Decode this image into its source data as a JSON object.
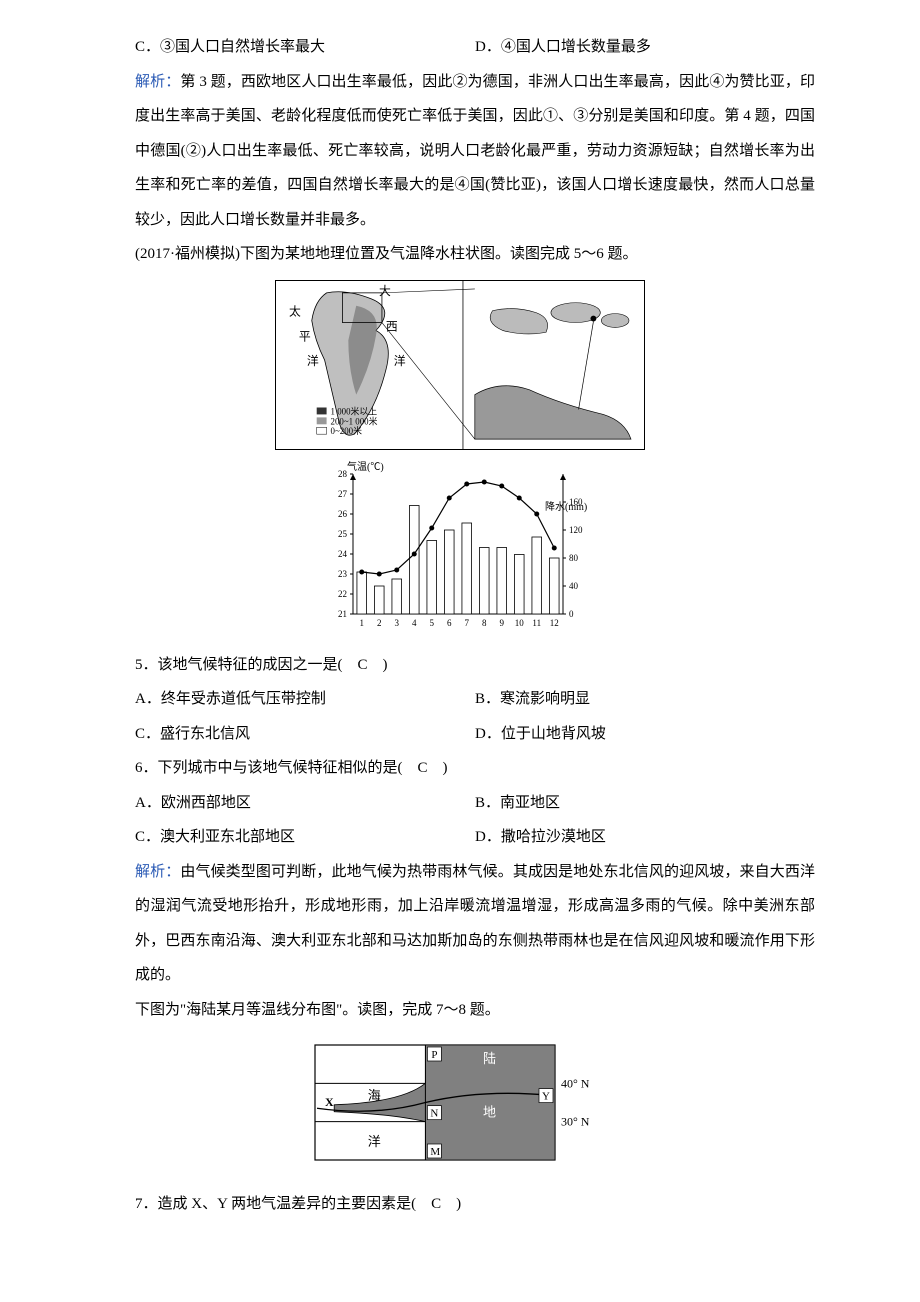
{
  "opt_c_d": {
    "c": "C．③国人口自然增长率最大",
    "d": "D．④国人口增长数量最多"
  },
  "analysis34": {
    "label": "解析：",
    "text": "第 3 题，西欧地区人口出生率最低，因此②为德国，非洲人口出生率最高，因此④为赞比亚，印度出生率高于美国、老龄化程度低而使死亡率低于美国，因此①、③分别是美国和印度。第 4 题，四国中德国(②)人口出生率最低、死亡率较高，说明人口老龄化最严重，劳动力资源短缺；自然增长率为出生率和死亡率的差值，四国自然增长率最大的是④国(赞比亚)，该国人口增长速度最快，然而人口总量较少，因此人口增长数量并非最多。"
  },
  "intro56": "(2017·福州模拟)下图为某地地理位置及气温降水柱状图。读图完成 5～6 题。",
  "legend": {
    "l1": "1 000米以上",
    "l2": "200~1 000米",
    "l3": "0~200米",
    "big": "大",
    "west": "西",
    "pacific1": "太",
    "pacific2": "平",
    "pacific3": "洋",
    "ocean": "洋"
  },
  "chart": {
    "temp_label": "气温(℃)",
    "precip_label": "降水(mm)",
    "y_temp": [
      "28",
      "27",
      "26",
      "25",
      "24",
      "23",
      "22",
      "21"
    ],
    "y_precip": [
      "160",
      "120",
      "80",
      "40",
      "0"
    ],
    "x_months": [
      "1",
      "2",
      "3",
      "4",
      "5",
      "6",
      "7",
      "8",
      "9",
      "10",
      "11",
      "12"
    ],
    "bar_values": [
      60,
      40,
      50,
      155,
      105,
      120,
      130,
      95,
      95,
      85,
      110,
      80
    ],
    "temp_points": [
      23.1,
      23.0,
      23.2,
      24.0,
      25.3,
      26.8,
      27.5,
      27.6,
      27.4,
      26.8,
      26.0,
      24.3
    ],
    "temp_range": [
      21,
      28
    ],
    "precip_range": [
      0,
      200
    ],
    "bar_color": "#ffffff",
    "bar_stroke": "#000000",
    "line_color": "#000000",
    "marker_size": 2.5
  },
  "q5": {
    "stem": "5．该地气候特征的成因之一是(　C　)",
    "a": "A．终年受赤道低气压带控制",
    "b": "B．寒流影响明显",
    "c": "C．盛行东北信风",
    "d": "D．位于山地背风坡"
  },
  "q6": {
    "stem": "6．下列城市中与该地气候特征相似的是(　C　)",
    "a": "A．欧洲西部地区",
    "b": "B．南亚地区",
    "c": "C．澳大利亚东北部地区",
    "d": "D．撒哈拉沙漠地区"
  },
  "analysis56": {
    "label": "解析：",
    "text": "由气候类型图可判断，此地气候为热带雨林气候。其成因是地处东北信风的迎风坡，来自大西洋的湿润气流受地形抬升，形成地形雨，加上沿岸暖流增温增湿，形成高温多雨的气候。除中美洲东部外，巴西东南沿海、澳大利亚东北部和马达加斯加岛的东侧热带雨林也是在信风迎风坡和暖流作用下形成的。"
  },
  "intro78": "下图为\"海陆某月等温线分布图\"。读图，完成 7～8 题。",
  "temp_map": {
    "labels": {
      "P": "P",
      "N": "N",
      "M": "M",
      "X": "X",
      "Y": "Y",
      "land": "陆",
      "land2": "地",
      "sea": "海",
      "ocean": "洋"
    },
    "lat40": "40° N",
    "lat30": "30° N",
    "fill_land": "#808080",
    "fill_sea": "#ffffff",
    "stroke": "#000000"
  },
  "q7": {
    "stem": "7．造成 X、Y 两地气温差异的主要因素是(　C　)"
  }
}
